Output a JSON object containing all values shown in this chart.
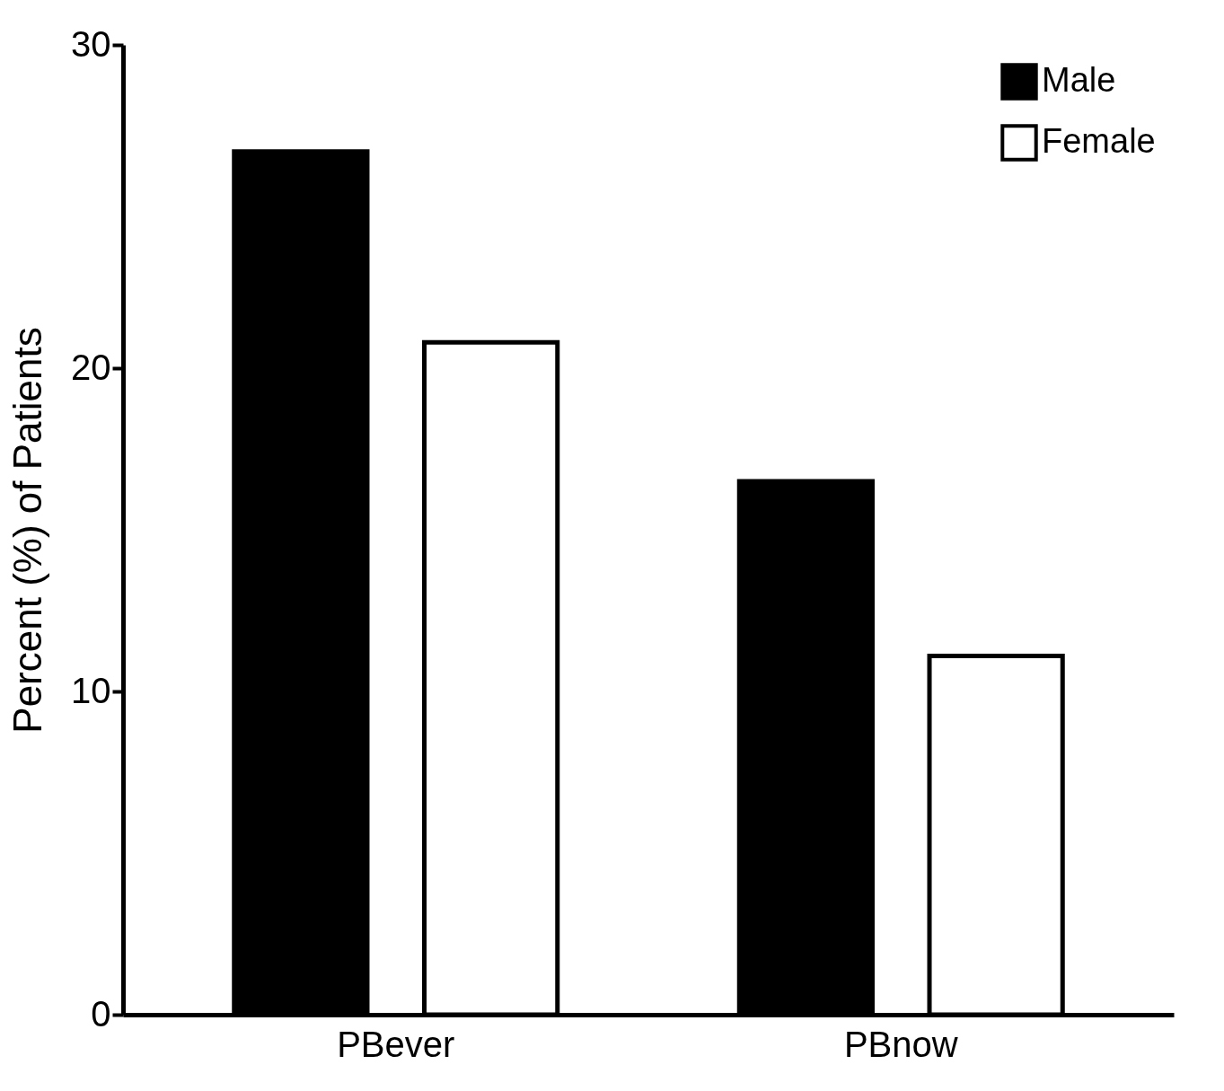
{
  "chart_data": {
    "type": "bar",
    "ylabel": "Percent (%) of Patients",
    "categories": [
      "PBever",
      "PBnow"
    ],
    "series": [
      {
        "name": "Male",
        "color": "#000000",
        "values": [
          26.7,
          16.5
        ]
      },
      {
        "name": "Female",
        "color": "#ffffff",
        "values": [
          20.8,
          11.1
        ]
      }
    ],
    "ylim": [
      0,
      30
    ],
    "yticks": [
      0,
      10,
      20,
      30
    ],
    "legend": "top right"
  }
}
